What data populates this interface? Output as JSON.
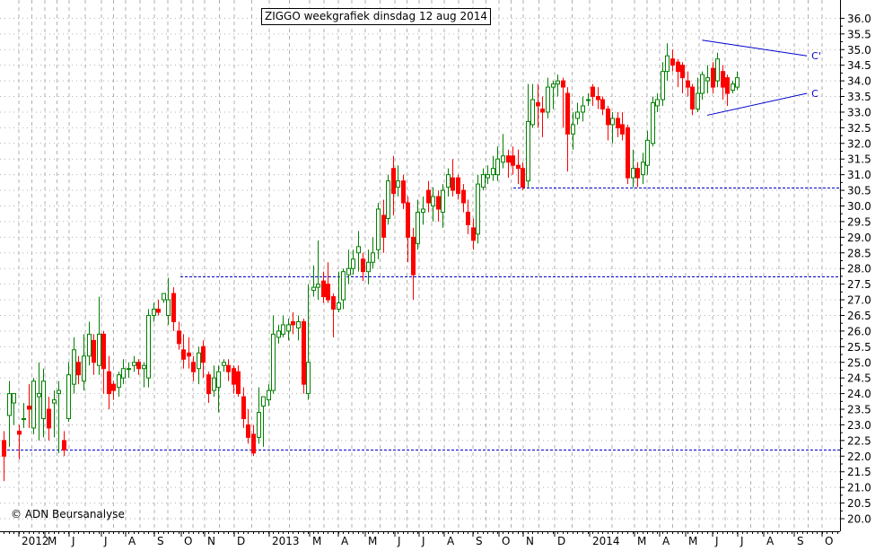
{
  "title": "ZIGGO weekgrafiek dinsdag 12 aug 2014",
  "copyright": "© ADN Beursanalyse",
  "colors": {
    "up": "#008000",
    "down": "#ff0000",
    "grid": "#b0b0b0",
    "hline": "#0000cc",
    "trend": "#0000cc",
    "axis": "#000000"
  },
  "chart_data": {
    "type": "candlestick",
    "title": "ZIGGO weekgrafiek dinsdag 12 aug 2014",
    "ylim": [
      19.7,
      36.4
    ],
    "y_ticks": [
      20.0,
      20.5,
      21.0,
      21.5,
      22.0,
      22.5,
      23.0,
      23.5,
      24.0,
      24.5,
      25.0,
      25.5,
      26.0,
      26.5,
      27.0,
      27.5,
      28.0,
      28.5,
      29.0,
      29.5,
      30.0,
      30.5,
      31.0,
      31.5,
      32.0,
      32.5,
      33.0,
      33.5,
      34.0,
      34.5,
      35.0,
      35.5,
      36.0
    ],
    "y_axis_side": "right",
    "grid": true,
    "x_labels": [
      "2012",
      "M",
      "J",
      "J",
      "A",
      "S",
      "O",
      "N",
      "D",
      "2013",
      "M",
      "A",
      "M",
      "J",
      "J",
      "A",
      "S",
      "O",
      "N",
      "D",
      "2014",
      "M",
      "A",
      "M",
      "J",
      "J",
      "A",
      "S",
      "O"
    ],
    "weeks_start": "2012-W13",
    "candles": [
      [
        22.5,
        22.0,
        21.2,
        22.8
      ],
      [
        23.3,
        24.0,
        22.3,
        24.4
      ],
      [
        23.7,
        24.0,
        23.0,
        24.0
      ],
      [
        22.8,
        22.7,
        21.9,
        23.0
      ],
      [
        23.2,
        23.2,
        22.9,
        23.7
      ],
      [
        23.6,
        23.5,
        22.9,
        24.3
      ],
      [
        22.9,
        24.4,
        22.7,
        24.5
      ],
      [
        23.9,
        24.0,
        22.5,
        25.0
      ],
      [
        23.2,
        24.4,
        22.6,
        24.8
      ],
      [
        23.5,
        22.9,
        22.5,
        23.9
      ],
      [
        23.7,
        23.8,
        22.6,
        24.1
      ],
      [
        24.0,
        24.1,
        22.1,
        24.4
      ],
      [
        22.5,
        22.2,
        22.0,
        22.8
      ],
      [
        23.2,
        24.6,
        23.1,
        25.0
      ],
      [
        24.3,
        25.4,
        24.0,
        25.8
      ],
      [
        25.0,
        24.6,
        24.3,
        25.2
      ],
      [
        24.4,
        25.2,
        24.1,
        25.9
      ],
      [
        25.2,
        25.9,
        24.9,
        26.3
      ],
      [
        25.7,
        25.0,
        24.6,
        25.9
      ],
      [
        24.9,
        25.9,
        24.6,
        27.1
      ],
      [
        25.9,
        24.8,
        24.0,
        26.0
      ],
      [
        24.7,
        24.0,
        23.5,
        25.2
      ],
      [
        24.3,
        24.1,
        23.8,
        24.4
      ],
      [
        24.2,
        24.6,
        23.9,
        24.7
      ],
      [
        24.5,
        24.8,
        24.3,
        25.1
      ],
      [
        24.8,
        24.8,
        24.5,
        25.0
      ],
      [
        24.9,
        25.0,
        24.7,
        25.2
      ],
      [
        25.0,
        24.8,
        24.6,
        25.1
      ],
      [
        24.8,
        24.9,
        24.2,
        25.0
      ],
      [
        24.5,
        26.5,
        24.2,
        26.7
      ],
      [
        26.5,
        26.7,
        26.3,
        26.9
      ],
      [
        26.7,
        26.6,
        26.5,
        27.0
      ],
      [
        27.0,
        27.2,
        26.9,
        27.2
      ],
      [
        26.5,
        27.0,
        26.2,
        27.7
      ],
      [
        27.2,
        26.3,
        26.0,
        27.4
      ],
      [
        26.0,
        25.6,
        25.4,
        26.3
      ],
      [
        25.4,
        25.1,
        24.8,
        25.9
      ],
      [
        25.3,
        25.2,
        24.8,
        25.8
      ],
      [
        25.0,
        24.7,
        24.4,
        25.2
      ],
      [
        24.8,
        25.3,
        24.3,
        25.5
      ],
      [
        25.5,
        25.0,
        24.5,
        25.7
      ],
      [
        24.6,
        24.0,
        23.7,
        24.7
      ],
      [
        24.1,
        24.5,
        23.9,
        24.9
      ],
      [
        24.2,
        24.7,
        23.4,
        24.9
      ],
      [
        24.9,
        25.0,
        24.7,
        25.1
      ],
      [
        24.9,
        24.7,
        24.4,
        25.1
      ],
      [
        24.8,
        24.3,
        24.0,
        24.9
      ],
      [
        24.7,
        24.0,
        23.9,
        24.9
      ],
      [
        23.9,
        23.2,
        22.9,
        24.2
      ],
      [
        23.0,
        22.6,
        22.4,
        23.5
      ],
      [
        22.7,
        22.1,
        22.0,
        23.0
      ],
      [
        22.6,
        23.4,
        22.4,
        24.2
      ],
      [
        23.6,
        23.9,
        22.3,
        23.9
      ],
      [
        23.8,
        24.1,
        23.6,
        24.3
      ],
      [
        24.1,
        25.9,
        24.0,
        26.5
      ],
      [
        25.8,
        26.0,
        25.6,
        26.2
      ],
      [
        25.9,
        26.2,
        25.8,
        26.5
      ],
      [
        26.0,
        26.2,
        25.7,
        26.4
      ],
      [
        26.3,
        26.2,
        25.9,
        26.6
      ],
      [
        26.1,
        26.3,
        25.7,
        26.5
      ],
      [
        26.3,
        24.3,
        24.0,
        26.4
      ],
      [
        24.0,
        25.0,
        23.8,
        27.5
      ],
      [
        27.3,
        27.4,
        27.1,
        28.1
      ],
      [
        27.4,
        27.5,
        27.0,
        28.9
      ],
      [
        27.6,
        27.1,
        26.9,
        27.9
      ],
      [
        27.5,
        27.0,
        26.9,
        28.2
      ],
      [
        27.1,
        26.7,
        25.8,
        27.2
      ],
      [
        26.7,
        26.9,
        26.6,
        27.9
      ],
      [
        27.0,
        27.9,
        26.7,
        28.0
      ],
      [
        27.8,
        28.0,
        27.5,
        28.6
      ],
      [
        28.0,
        28.3,
        27.8,
        28.6
      ],
      [
        28.5,
        28.7,
        27.9,
        29.2
      ],
      [
        28.3,
        27.9,
        27.6,
        28.5
      ],
      [
        27.9,
        28.2,
        27.5,
        28.6
      ],
      [
        28.2,
        28.5,
        28.0,
        29.0
      ],
      [
        28.6,
        29.9,
        28.3,
        30.1
      ],
      [
        29.7,
        29.0,
        28.5,
        30.2
      ],
      [
        29.6,
        30.8,
        29.4,
        31.0
      ],
      [
        31.2,
        30.4,
        29.7,
        31.6
      ],
      [
        30.6,
        30.8,
        30.3,
        31.3
      ],
      [
        30.8,
        30.1,
        29.9,
        31.0
      ],
      [
        30.1,
        29.0,
        28.2,
        30.3
      ],
      [
        29.0,
        27.8,
        27.0,
        29.3
      ],
      [
        28.8,
        29.8,
        28.6,
        30.2
      ],
      [
        29.8,
        29.9,
        29.4,
        30.3
      ],
      [
        30.5,
        30.1,
        29.8,
        30.8
      ],
      [
        30.0,
        30.3,
        29.5,
        30.6
      ],
      [
        30.3,
        29.9,
        29.5,
        30.5
      ],
      [
        29.8,
        30.5,
        29.3,
        30.7
      ],
      [
        30.6,
        31.0,
        30.3,
        31.2
      ],
      [
        30.9,
        30.5,
        30.3,
        31.5
      ],
      [
        30.9,
        30.4,
        30.2,
        31.0
      ],
      [
        30.5,
        30.1,
        29.8,
        30.7
      ],
      [
        29.8,
        29.4,
        29.1,
        30.2
      ],
      [
        29.3,
        28.9,
        28.6,
        29.6
      ],
      [
        29.1,
        30.7,
        28.8,
        31.0
      ],
      [
        30.6,
        31.0,
        30.5,
        31.2
      ],
      [
        30.9,
        31.0,
        30.7,
        31.3
      ],
      [
        31.0,
        31.2,
        30.8,
        31.6
      ],
      [
        31.0,
        31.5,
        30.8,
        31.9
      ],
      [
        31.4,
        31.6,
        31.2,
        32.3
      ],
      [
        31.6,
        31.4,
        30.9,
        31.8
      ],
      [
        31.6,
        31.3,
        31.0,
        31.9
      ],
      [
        31.3,
        31.2,
        30.7,
        31.8
      ],
      [
        31.2,
        30.6,
        30.5,
        31.4
      ],
      [
        30.8,
        32.7,
        30.6,
        33.9
      ],
      [
        32.6,
        33.4,
        32.5,
        33.9
      ],
      [
        33.3,
        33.2,
        32.5,
        33.9
      ],
      [
        33.1,
        33.0,
        32.2,
        33.5
      ],
      [
        33.0,
        33.8,
        32.8,
        34.1
      ],
      [
        33.8,
        33.9,
        33.1,
        34.0
      ],
      [
        33.9,
        34.0,
        33.5,
        34.2
      ],
      [
        34.0,
        33.8,
        32.5,
        34.1
      ],
      [
        33.6,
        32.3,
        31.1,
        33.8
      ],
      [
        32.3,
        32.6,
        31.8,
        33.0
      ],
      [
        32.8,
        33.0,
        32.6,
        33.3
      ],
      [
        33.0,
        33.2,
        32.7,
        33.5
      ],
      [
        33.4,
        33.4,
        33.2,
        33.6
      ],
      [
        33.8,
        33.5,
        33.2,
        33.9
      ],
      [
        33.5,
        33.4,
        33.1,
        33.8
      ],
      [
        33.4,
        33.1,
        32.9,
        33.5
      ],
      [
        33.1,
        32.6,
        32.1,
        33.2
      ],
      [
        32.6,
        32.8,
        32.0,
        33.0
      ],
      [
        32.8,
        32.5,
        32.2,
        33.0
      ],
      [
        32.6,
        32.3,
        32.1,
        33.0
      ],
      [
        32.5,
        30.9,
        30.7,
        32.6
      ],
      [
        30.9,
        31.2,
        30.6,
        31.8
      ],
      [
        31.2,
        30.9,
        30.6,
        31.4
      ],
      [
        31.0,
        31.4,
        30.7,
        31.7
      ],
      [
        31.3,
        32.1,
        31.0,
        32.4
      ],
      [
        32.0,
        33.3,
        31.9,
        33.5
      ],
      [
        33.2,
        33.4,
        33.0,
        33.6
      ],
      [
        33.4,
        34.3,
        33.2,
        34.6
      ],
      [
        34.3,
        34.8,
        34.0,
        35.2
      ],
      [
        34.7,
        34.5,
        34.3,
        35.0
      ],
      [
        34.6,
        34.3,
        33.8,
        34.7
      ],
      [
        34.5,
        34.1,
        33.6,
        34.6
      ],
      [
        34.0,
        33.8,
        33.5,
        34.3
      ],
      [
        33.8,
        33.1,
        32.9,
        33.9
      ],
      [
        33.1,
        33.6,
        33.0,
        34.1
      ],
      [
        33.6,
        34.2,
        33.4,
        34.3
      ],
      [
        34.0,
        34.1,
        33.6,
        34.5
      ],
      [
        34.4,
        33.8,
        33.6,
        34.6
      ],
      [
        34.0,
        34.7,
        33.8,
        34.9
      ],
      [
        34.3,
        33.8,
        33.4,
        34.5
      ],
      [
        34.1,
        33.6,
        33.2,
        34.2
      ],
      [
        33.7,
        33.9,
        33.6,
        34.0
      ],
      [
        33.8,
        34.1,
        33.7,
        34.3
      ]
    ],
    "hlines": [
      30.6,
      27.75,
      22.2
    ],
    "trendlines": [
      {
        "label": "C'",
        "from": {
          "week": 140,
          "y": 35.3
        },
        "to": {
          "week": 161,
          "y": 34.8
        }
      },
      {
        "label": "C",
        "from": {
          "week": 141,
          "y": 32.9
        },
        "to": {
          "week": 161,
          "y": 33.6
        }
      }
    ]
  }
}
